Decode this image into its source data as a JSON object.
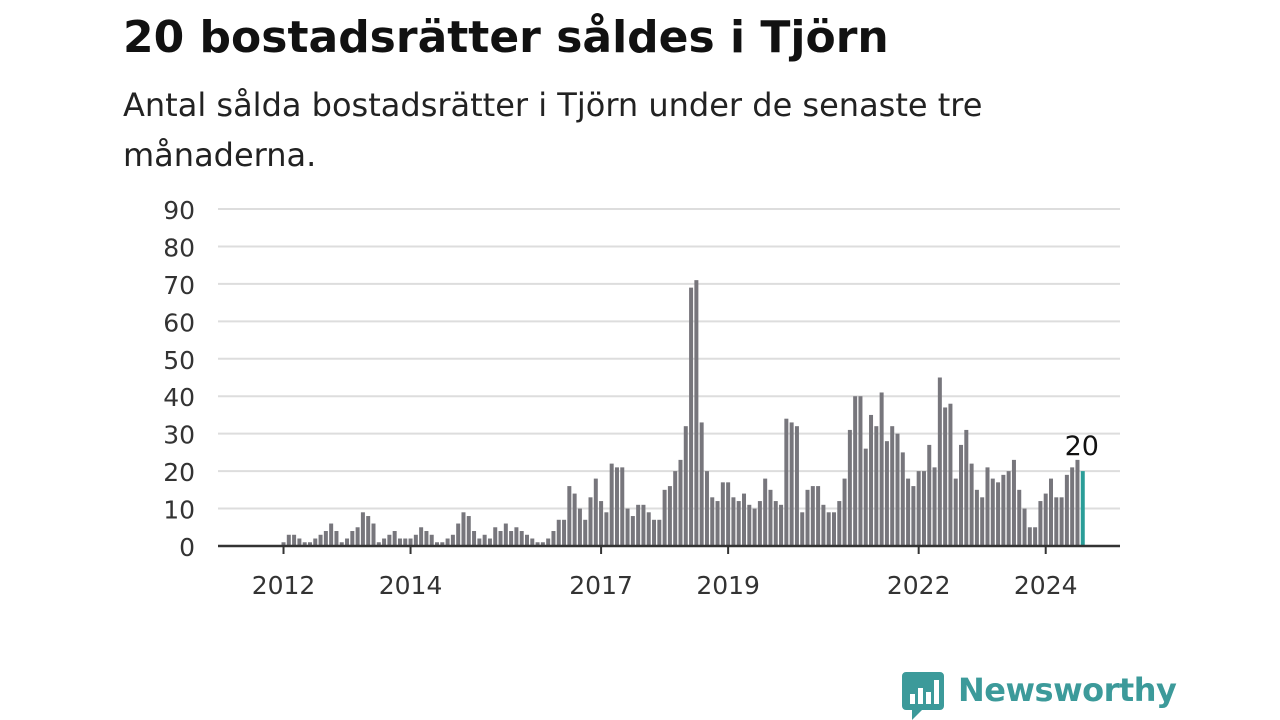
{
  "title": "20 bostadsrätter såldes i Tjörn",
  "subtitle": "Antal sålda bostadsrätter i Tjörn under de senaste tre månaderna.",
  "brand": {
    "name": "Newsworthy",
    "color": "#3c9a9a"
  },
  "chart_data": {
    "type": "bar",
    "title": "20 bostadsrätter såldes i Tjörn",
    "subtitle": "Antal sålda bostadsrätter i Tjörn under de senaste tre månaderna.",
    "xlabel": "",
    "ylabel": "",
    "ylim": [
      0,
      90
    ],
    "yticks": [
      0,
      10,
      20,
      30,
      40,
      50,
      60,
      70,
      80,
      90
    ],
    "xticks": [
      "2012",
      "2014",
      "2017",
      "2019",
      "2022",
      "2024"
    ],
    "grid": true,
    "x_start": "2011-01",
    "frequency": "monthly",
    "bar_color": "#77767c",
    "highlight_color": "#2a9d98",
    "highlight_label": "20",
    "values": [
      0,
      0,
      0,
      0,
      0,
      0,
      0,
      0,
      0,
      0,
      0,
      0,
      1,
      3,
      3,
      2,
      1,
      1,
      2,
      3,
      4,
      6,
      4,
      1,
      2,
      4,
      5,
      9,
      8,
      6,
      1,
      2,
      3,
      4,
      2,
      2,
      2,
      3,
      5,
      4,
      3,
      1,
      1,
      2,
      3,
      6,
      9,
      8,
      4,
      2,
      3,
      2,
      5,
      4,
      6,
      4,
      5,
      4,
      3,
      2,
      1,
      1,
      2,
      4,
      7,
      7,
      16,
      14,
      10,
      7,
      13,
      18,
      12,
      9,
      22,
      21,
      21,
      10,
      8,
      11,
      11,
      9,
      7,
      7,
      15,
      16,
      20,
      23,
      32,
      69,
      71,
      33,
      20,
      13,
      12,
      17,
      17,
      13,
      12,
      14,
      11,
      10,
      12,
      18,
      15,
      12,
      11,
      34,
      33,
      32,
      9,
      15,
      16,
      16,
      11,
      9,
      9,
      12,
      18,
      31,
      40,
      40,
      26,
      35,
      32,
      41,
      28,
      32,
      30,
      25,
      18,
      16,
      20,
      20,
      27,
      21,
      45,
      37,
      38,
      18,
      27,
      31,
      22,
      15,
      13,
      21,
      18,
      17,
      19,
      20,
      23,
      15,
      10,
      5,
      5,
      12,
      14,
      18,
      13,
      13,
      19,
      21,
      23,
      20
    ]
  }
}
